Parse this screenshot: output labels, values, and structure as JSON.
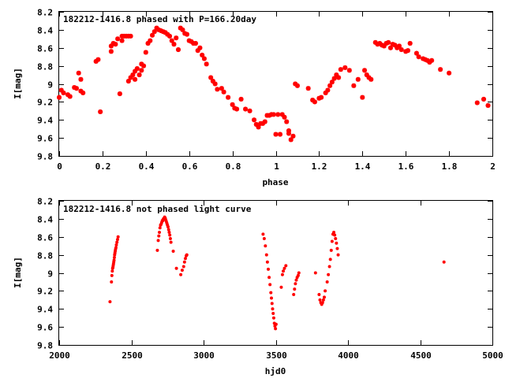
{
  "colors": {
    "marker": "#ff0000",
    "axis": "#000000",
    "background": "#ffffff"
  },
  "chart_data": [
    {
      "type": "scatter",
      "title": "182212-1416.8 phased with P=166.20day",
      "xlabel": "phase",
      "ylabel": "I[mag]",
      "xlim": [
        0,
        2
      ],
      "ylim": [
        8.2,
        9.8
      ],
      "y_inverted": true,
      "grid": false,
      "legend": "none",
      "marker": "star",
      "xticks": [
        0,
        0.2,
        0.4,
        0.6,
        0.8,
        1,
        1.2,
        1.4,
        1.6,
        1.8,
        2
      ],
      "xtick_labels": [
        "0",
        "0.2",
        "0.4",
        "0.6",
        "0.8",
        "1",
        "1.2",
        "1.4",
        "1.6",
        "1.8",
        "2"
      ],
      "yticks": [
        8.2,
        8.4,
        8.6,
        8.8,
        9,
        9.2,
        9.4,
        9.6,
        9.8
      ],
      "ytick_labels": [
        "8.2",
        "8.4",
        "8.6",
        "8.8",
        "9",
        "9.2",
        "9.4",
        "9.6",
        "9.8"
      ],
      "series": [
        {
          "x": [
            0.0,
            0.01,
            0.02,
            0.04,
            0.05,
            0.07,
            0.08,
            0.09,
            0.1,
            0.1,
            0.11,
            0.17,
            0.18,
            0.19,
            0.24,
            0.24,
            0.25,
            0.26,
            0.27,
            0.28,
            0.29,
            0.29,
            0.3,
            0.31,
            0.32,
            0.33,
            0.32,
            0.33,
            0.34,
            0.35,
            0.35,
            0.36,
            0.37,
            0.38,
            0.39,
            0.38,
            0.4,
            0.41,
            0.42,
            0.43,
            0.44,
            0.45,
            0.46,
            0.47,
            0.48,
            0.49,
            0.5,
            0.51,
            0.52,
            0.53,
            0.54,
            0.55,
            0.56,
            0.57,
            0.58,
            0.59,
            0.6,
            0.61,
            0.62,
            0.63,
            0.64,
            0.65,
            0.66,
            0.67,
            0.68,
            0.7,
            0.71,
            0.72,
            0.73,
            0.75,
            0.76,
            0.78,
            0.8,
            0.81,
            0.82,
            0.84,
            0.86,
            0.88,
            0.9,
            0.91,
            0.92,
            0.93,
            0.94,
            0.95,
            0.96,
            0.97,
            0.98,
            0.99,
            1.0,
            1.01,
            1.02,
            1.03,
            1.04,
            1.05,
            1.06,
            1.06,
            1.07,
            1.08,
            1.09,
            1.1,
            1.15,
            1.17,
            1.18,
            1.2,
            1.21,
            1.23,
            1.24,
            1.25,
            1.26,
            1.27,
            1.28,
            1.29,
            1.3,
            1.32,
            1.34,
            1.36,
            1.38,
            1.4,
            1.41,
            1.42,
            1.43,
            1.44,
            1.46,
            1.47,
            1.48,
            1.49,
            1.5,
            1.51,
            1.52,
            1.53,
            1.54,
            1.55,
            1.56,
            1.57,
            1.58,
            1.6,
            1.61,
            1.62,
            1.65,
            1.66,
            1.68,
            1.69,
            1.7,
            1.71,
            1.72,
            1.76,
            1.8,
            1.93,
            1.96,
            1.98
          ],
          "y": [
            9.15,
            9.07,
            9.1,
            9.12,
            9.14,
            9.04,
            9.05,
            8.88,
            8.95,
            9.08,
            9.1,
            8.75,
            8.73,
            9.31,
            8.64,
            8.58,
            8.55,
            8.56,
            8.5,
            9.11,
            8.47,
            8.52,
            8.47,
            8.47,
            8.47,
            8.47,
            8.97,
            8.93,
            8.9,
            8.86,
            8.95,
            8.83,
            8.9,
            8.85,
            8.8,
            8.78,
            8.65,
            8.55,
            8.52,
            8.46,
            8.42,
            8.38,
            8.4,
            8.41,
            8.42,
            8.43,
            8.45,
            8.47,
            8.52,
            8.56,
            8.49,
            8.62,
            8.38,
            8.4,
            8.44,
            8.45,
            8.52,
            8.53,
            8.55,
            8.55,
            8.63,
            8.6,
            8.68,
            8.72,
            8.78,
            8.93,
            8.97,
            9.0,
            9.06,
            9.05,
            9.09,
            9.15,
            9.23,
            9.27,
            9.28,
            9.17,
            9.28,
            9.3,
            9.4,
            9.45,
            9.48,
            9.44,
            9.44,
            9.42,
            9.35,
            9.35,
            9.34,
            9.34,
            9.56,
            9.34,
            9.56,
            9.34,
            9.37,
            9.42,
            9.52,
            9.55,
            9.62,
            9.58,
            9.0,
            9.02,
            9.05,
            9.18,
            9.2,
            9.16,
            9.15,
            9.1,
            9.07,
            9.02,
            8.98,
            8.94,
            8.9,
            8.93,
            8.84,
            8.82,
            8.85,
            9.02,
            8.95,
            9.15,
            8.85,
            8.9,
            8.93,
            8.95,
            8.54,
            8.56,
            8.55,
            8.57,
            8.58,
            8.55,
            8.54,
            8.6,
            8.56,
            8.57,
            8.6,
            8.58,
            8.62,
            8.64,
            8.63,
            8.55,
            8.66,
            8.7,
            8.72,
            8.73,
            8.74,
            8.76,
            8.74,
            8.84,
            8.88,
            9.21,
            9.17,
            9.24
          ]
        }
      ]
    },
    {
      "type": "scatter",
      "title": "182212-1416.8 not phased light curve",
      "xlabel": "hjd0",
      "ylabel": "I[mag]",
      "xlim": [
        2000,
        5000
      ],
      "ylim": [
        8.2,
        9.8
      ],
      "y_inverted": true,
      "grid": false,
      "legend": "none",
      "marker": "dot",
      "xticks": [
        2000,
        2500,
        3000,
        3500,
        4000,
        4500,
        5000
      ],
      "xtick_labels": [
        "2000",
        "2500",
        "3000",
        "3500",
        "4000",
        "4500",
        "5000"
      ],
      "yticks": [
        8.2,
        8.4,
        8.6,
        8.8,
        9,
        9.2,
        9.4,
        9.6,
        9.8
      ],
      "ytick_labels": [
        "8.2",
        "8.4",
        "8.6",
        "8.8",
        "9",
        "9.2",
        "9.4",
        "9.6",
        "9.8"
      ],
      "series": [
        {
          "x": [
            2352,
            2362,
            2365,
            2368,
            2370,
            2372,
            2374,
            2376,
            2378,
            2380,
            2382,
            2384,
            2386,
            2388,
            2390,
            2393,
            2396,
            2400,
            2404,
            2408,
            2680,
            2686,
            2690,
            2694,
            2698,
            2702,
            2706,
            2710,
            2714,
            2718,
            2722,
            2726,
            2730,
            2734,
            2738,
            2742,
            2746,
            2750,
            2754,
            2758,
            2762,
            2766,
            2770,
            2774,
            2790,
            2812,
            2842,
            2852,
            2862,
            2868,
            2874,
            2880,
            2884,
            3412,
            3420,
            3428,
            3436,
            3442,
            3448,
            3454,
            3460,
            3466,
            3470,
            3474,
            3478,
            3482,
            3486,
            3490,
            3494,
            3498,
            3502,
            3538,
            3546,
            3552,
            3560,
            3570,
            3624,
            3630,
            3636,
            3642,
            3648,
            3655,
            3660,
            3775,
            3800,
            3806,
            3812,
            3818,
            3824,
            3830,
            3836,
            3842,
            3856,
            3864,
            3872,
            3878,
            3884,
            3890,
            3896,
            3902,
            3908,
            3914,
            3920,
            3926,
            3932,
            4665
          ],
          "y": [
            9.32,
            9.1,
            9.03,
            8.98,
            8.95,
            8.94,
            8.92,
            8.9,
            8.88,
            8.86,
            8.83,
            8.8,
            8.78,
            8.76,
            8.74,
            8.72,
            8.69,
            8.66,
            8.63,
            8.6,
            8.75,
            8.64,
            8.59,
            8.55,
            8.5,
            8.47,
            8.46,
            8.44,
            8.42,
            8.42,
            8.4,
            8.4,
            8.38,
            8.39,
            8.41,
            8.43,
            8.45,
            8.47,
            8.49,
            8.52,
            8.55,
            8.58,
            8.62,
            8.66,
            8.76,
            8.95,
            9.02,
            8.97,
            8.93,
            8.88,
            8.84,
            8.81,
            8.8,
            8.57,
            8.62,
            8.7,
            8.8,
            8.88,
            8.96,
            9.05,
            9.13,
            9.22,
            9.28,
            9.34,
            9.4,
            9.45,
            9.5,
            9.56,
            9.59,
            9.62,
            9.57,
            9.16,
            9.02,
            8.98,
            8.95,
            8.92,
            9.24,
            9.18,
            9.12,
            9.08,
            9.05,
            9.03,
            9.0,
            9.0,
            9.24,
            9.3,
            9.33,
            9.35,
            9.33,
            9.3,
            9.27,
            9.2,
            9.1,
            9.02,
            8.93,
            8.85,
            8.75,
            8.65,
            8.57,
            8.55,
            8.58,
            8.62,
            8.67,
            8.73,
            8.8,
            8.88
          ]
        }
      ]
    }
  ]
}
